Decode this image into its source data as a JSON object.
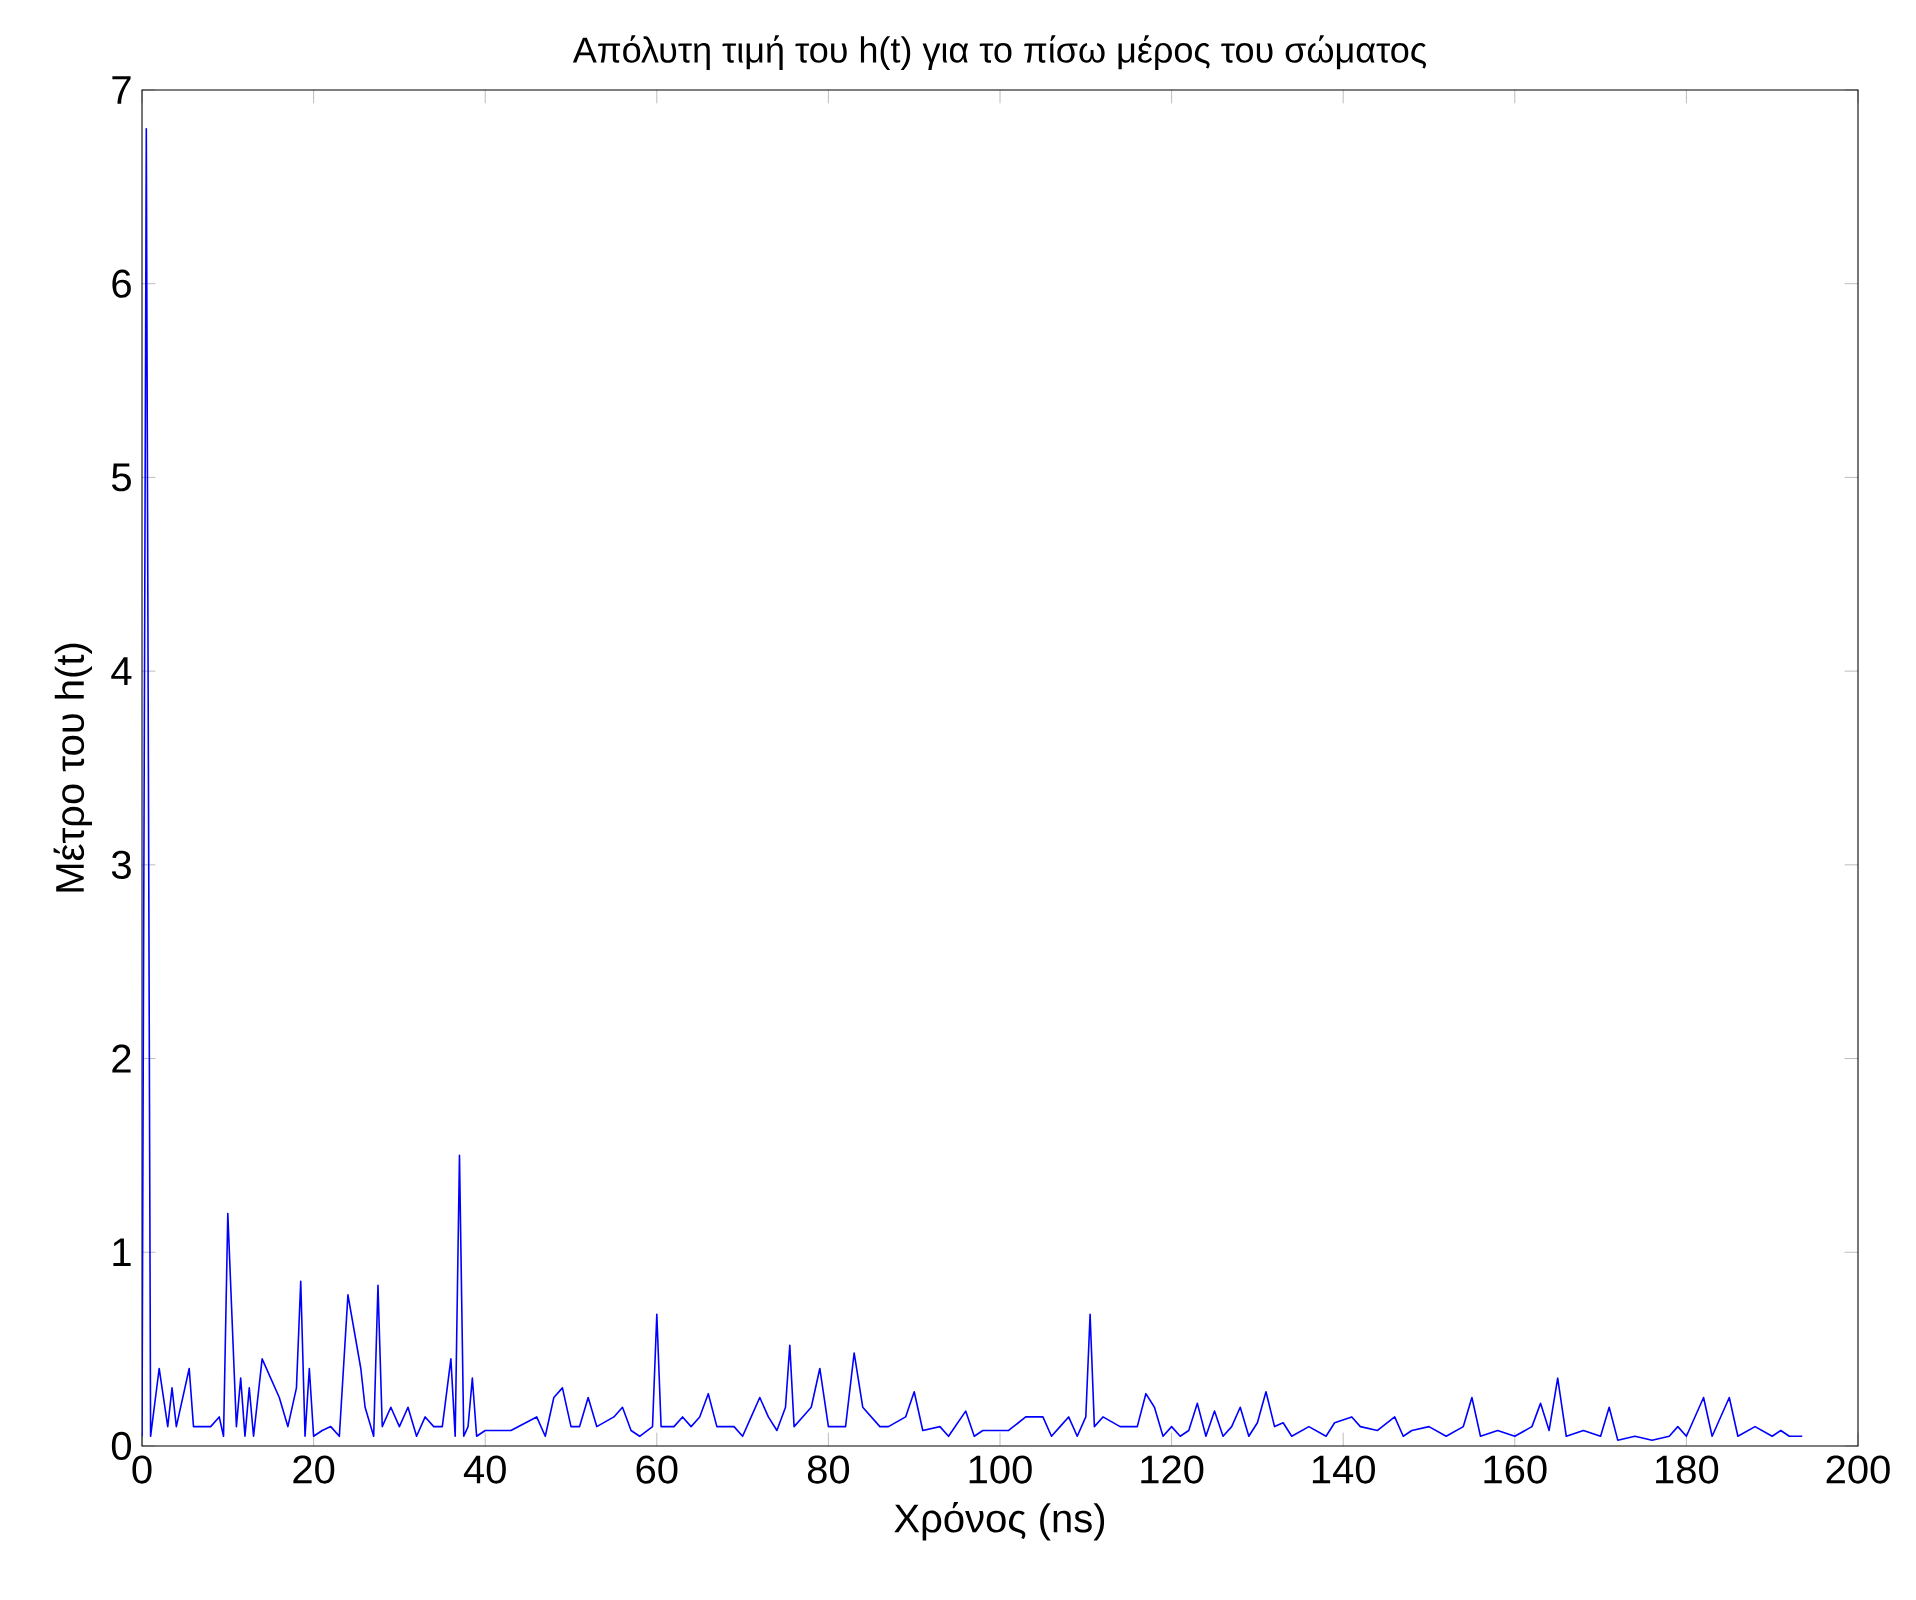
{
  "chart_data": {
    "type": "line",
    "title": "Απόλυτη τιμή του h(t) για το πίσω μέρος του σώματος",
    "xlabel": "Χρόνος (ns)",
    "ylabel": "Μέτρο του h(t)",
    "xlim": [
      0,
      200
    ],
    "ylim": [
      0,
      7
    ],
    "xticks": [
      0,
      20,
      40,
      60,
      80,
      100,
      120,
      140,
      160,
      180,
      200
    ],
    "yticks": [
      0,
      1,
      2,
      3,
      4,
      5,
      6,
      7
    ],
    "grid": false,
    "marker": "none",
    "line_style": "solid",
    "series": [
      {
        "color": "#0000ff",
        "x": [
          0,
          0.5,
          1,
          2,
          3,
          3.5,
          4,
          5.5,
          6,
          8,
          9,
          9.5,
          10,
          11,
          11.5,
          12,
          12.5,
          13,
          14,
          16,
          17,
          18,
          18.5,
          19,
          19.5,
          20,
          21,
          22,
          23,
          24,
          25.5,
          26,
          27,
          27.5,
          28,
          29,
          30,
          31,
          32,
          33,
          34,
          35,
          36,
          36.5,
          37,
          37.5,
          38,
          38.5,
          39,
          40,
          43,
          46,
          47,
          48,
          49,
          50,
          51,
          52,
          53,
          55,
          56,
          57,
          58,
          59.5,
          60,
          60.5,
          62,
          63,
          64,
          65,
          66,
          67,
          68,
          69,
          70,
          71,
          72,
          73,
          74,
          75,
          75.5,
          76,
          77,
          78,
          79,
          80,
          81,
          82,
          83,
          84,
          86,
          87,
          89,
          90,
          91,
          93,
          94,
          96,
          97,
          98,
          101,
          103,
          105,
          106,
          107,
          108,
          109,
          110,
          110.5,
          111,
          112,
          114,
          116,
          117,
          118,
          119,
          120,
          121,
          122,
          123,
          124,
          125,
          126,
          127,
          128,
          129,
          130,
          131,
          132,
          133,
          134,
          136,
          138,
          139,
          141,
          142,
          144,
          146,
          147,
          148,
          150,
          152,
          154,
          155,
          156,
          158,
          160,
          162,
          163,
          164,
          165,
          166,
          168,
          170,
          171,
          172,
          174,
          176,
          178,
          179,
          180,
          182,
          183,
          185,
          186,
          188,
          190,
          191,
          192,
          193.5
        ],
        "values": [
          0.05,
          6.8,
          0.05,
          0.4,
          0.1,
          0.3,
          0.1,
          0.4,
          0.1,
          0.1,
          0.15,
          0.05,
          1.2,
          0.1,
          0.35,
          0.05,
          0.3,
          0.05,
          0.45,
          0.25,
          0.1,
          0.3,
          0.85,
          0.05,
          0.4,
          0.05,
          0.08,
          0.1,
          0.05,
          0.78,
          0.4,
          0.2,
          0.05,
          0.83,
          0.1,
          0.2,
          0.1,
          0.2,
          0.05,
          0.15,
          0.1,
          0.1,
          0.45,
          0.05,
          1.5,
          0.05,
          0.1,
          0.35,
          0.05,
          0.08,
          0.08,
          0.15,
          0.05,
          0.25,
          0.3,
          0.1,
          0.1,
          0.25,
          0.1,
          0.15,
          0.2,
          0.08,
          0.05,
          0.1,
          0.68,
          0.1,
          0.1,
          0.15,
          0.1,
          0.15,
          0.27,
          0.1,
          0.1,
          0.1,
          0.05,
          0.15,
          0.25,
          0.15,
          0.08,
          0.2,
          0.52,
          0.1,
          0.15,
          0.2,
          0.4,
          0.1,
          0.1,
          0.1,
          0.48,
          0.2,
          0.1,
          0.1,
          0.15,
          0.28,
          0.08,
          0.1,
          0.05,
          0.18,
          0.05,
          0.08,
          0.08,
          0.15,
          0.15,
          0.05,
          0.1,
          0.15,
          0.05,
          0.15,
          0.68,
          0.1,
          0.15,
          0.1,
          0.1,
          0.27,
          0.2,
          0.05,
          0.1,
          0.05,
          0.08,
          0.22,
          0.05,
          0.18,
          0.05,
          0.1,
          0.2,
          0.05,
          0.12,
          0.28,
          0.1,
          0.12,
          0.05,
          0.1,
          0.05,
          0.12,
          0.15,
          0.1,
          0.08,
          0.15,
          0.05,
          0.08,
          0.1,
          0.05,
          0.1,
          0.25,
          0.05,
          0.08,
          0.05,
          0.1,
          0.22,
          0.08,
          0.35,
          0.05,
          0.08,
          0.05,
          0.2,
          0.03,
          0.05,
          0.03,
          0.05,
          0.1,
          0.05,
          0.25,
          0.05,
          0.25,
          0.05,
          0.1,
          0.05,
          0.08,
          0.05,
          0.05
        ]
      }
    ]
  }
}
